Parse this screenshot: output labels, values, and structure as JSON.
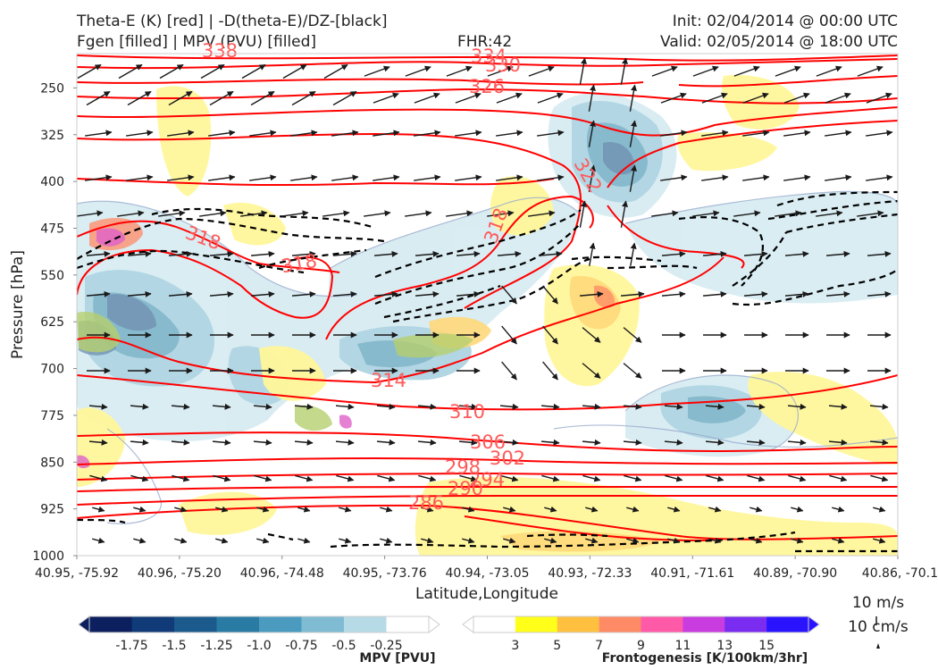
{
  "header": {
    "title_line1": "Theta-E (K) [red] | -D(theta-E)/DZ-[black]",
    "title_line2": "Fgen [filled] | MPV (PVU) [filled]",
    "fhr": "FHR:42",
    "init": "Init: 02/04/2014 @ 00:00 UTC",
    "valid": "Valid: 02/05/2014 @ 18:00 UTC"
  },
  "chart_data": {
    "type": "cross-section",
    "ylabel": "Pressure [hPa]",
    "xlabel": "Latitude,Longitude",
    "y_ticks": [
      "250",
      "325",
      "400",
      "475",
      "550",
      "625",
      "700",
      "775",
      "850",
      "925",
      "1000"
    ],
    "y_tick_values": [
      250,
      325,
      400,
      475,
      550,
      625,
      700,
      775,
      850,
      925,
      1000
    ],
    "ylim": [
      195,
      1000
    ],
    "x_ticks": [
      "40.95, -75.92",
      "40.96, -75.20",
      "40.96, -74.48",
      "40.95, -73.76",
      "40.94, -73.05",
      "40.93, -72.33",
      "40.91, -71.61",
      "40.89, -70.90",
      "40.86, -70.1"
    ],
    "theta_e_contour_labels": [
      "338",
      "334",
      "330",
      "326",
      "322",
      "318",
      "318",
      "318",
      "314",
      "310",
      "306",
      "302",
      "298",
      "294",
      "290",
      "286"
    ],
    "theta_e_color": "#ff0000",
    "wind_vector_color": "#1a1a1a",
    "vector_key": [
      "10 m/s",
      "10 cm/s"
    ],
    "mpv_colorbar": {
      "title": "MPV [PVU]",
      "ticks": [
        "-1.75",
        "-1.5",
        "-1.25",
        "-1.0",
        "-0.75",
        "-0.5",
        "-0.25"
      ],
      "colors": [
        "#0c1f5e",
        "#113a78",
        "#1a5a8c",
        "#2a7ba3",
        "#4a9bbf",
        "#7fbcd3",
        "#b6dae6",
        "#ffffff"
      ]
    },
    "fgen_colorbar": {
      "title": "Frontogenesis [K/100km/3hr]",
      "ticks": [
        "3",
        "5",
        "7",
        "9",
        "11",
        "13",
        "15"
      ],
      "colors": [
        "#ffffff",
        "#ffff1a",
        "#ffc040",
        "#ff8a66",
        "#ff5aa8",
        "#c83ce0",
        "#7a2cf0",
        "#2a14ff"
      ]
    }
  }
}
